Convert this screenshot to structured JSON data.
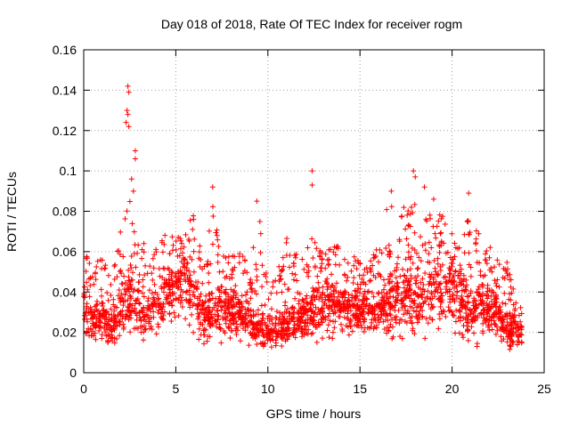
{
  "chart_data": {
    "type": "scatter",
    "title": "Day 018 of 2018, Rate Of TEC Index for receiver rogm",
    "xlabel": "GPS time / hours",
    "ylabel": "ROTI / TECUs",
    "xlim": [
      0,
      25
    ],
    "ylim": [
      0,
      0.16
    ],
    "grid": true,
    "x_ticks": [
      0,
      5,
      10,
      15,
      20,
      25
    ],
    "x_tick_labels": [
      "0",
      "5",
      "10",
      "15",
      "20",
      "25"
    ],
    "y_ticks": [
      0,
      0.02,
      0.04,
      0.06,
      0.08,
      0.1,
      0.12,
      0.14,
      0.16
    ],
    "y_tick_labels": [
      "0",
      "0.02",
      "0.04",
      "0.06",
      "0.08",
      "0.1",
      "0.12",
      "0.14",
      "0.16"
    ],
    "marker": "+",
    "marker_color": "#ff0000",
    "series": [
      {
        "name": "ROTI",
        "description": "Dense cloud of ROTI samples approximated by a time-binned profile (x in hours; low/median/high in TECU/min)",
        "profile": [
          {
            "x": 0.0,
            "low": 0.015,
            "mid": 0.03,
            "high": 0.065
          },
          {
            "x": 0.5,
            "low": 0.012,
            "mid": 0.025,
            "high": 0.048
          },
          {
            "x": 1.0,
            "low": 0.012,
            "mid": 0.028,
            "high": 0.066
          },
          {
            "x": 1.5,
            "low": 0.01,
            "mid": 0.022,
            "high": 0.045
          },
          {
            "x": 2.0,
            "low": 0.012,
            "mid": 0.03,
            "high": 0.07
          },
          {
            "x": 2.5,
            "low": 0.012,
            "mid": 0.035,
            "high": 0.09
          },
          {
            "x": 3.0,
            "low": 0.01,
            "mid": 0.03,
            "high": 0.075
          },
          {
            "x": 3.5,
            "low": 0.012,
            "mid": 0.03,
            "high": 0.06
          },
          {
            "x": 4.0,
            "low": 0.015,
            "mid": 0.035,
            "high": 0.062
          },
          {
            "x": 4.5,
            "low": 0.018,
            "mid": 0.04,
            "high": 0.07
          },
          {
            "x": 5.0,
            "low": 0.02,
            "mid": 0.042,
            "high": 0.068
          },
          {
            "x": 5.5,
            "low": 0.02,
            "mid": 0.045,
            "high": 0.07
          },
          {
            "x": 6.0,
            "low": 0.018,
            "mid": 0.038,
            "high": 0.08
          },
          {
            "x": 6.5,
            "low": 0.008,
            "mid": 0.025,
            "high": 0.055
          },
          {
            "x": 7.0,
            "low": 0.012,
            "mid": 0.032,
            "high": 0.085
          },
          {
            "x": 7.5,
            "low": 0.012,
            "mid": 0.03,
            "high": 0.06
          },
          {
            "x": 8.0,
            "low": 0.014,
            "mid": 0.03,
            "high": 0.058
          },
          {
            "x": 8.5,
            "low": 0.012,
            "mid": 0.028,
            "high": 0.062
          },
          {
            "x": 9.0,
            "low": 0.012,
            "mid": 0.025,
            "high": 0.05
          },
          {
            "x": 9.5,
            "low": 0.01,
            "mid": 0.022,
            "high": 0.08
          },
          {
            "x": 10.0,
            "low": 0.008,
            "mid": 0.02,
            "high": 0.045
          },
          {
            "x": 10.5,
            "low": 0.008,
            "mid": 0.02,
            "high": 0.05
          },
          {
            "x": 11.0,
            "low": 0.01,
            "mid": 0.022,
            "high": 0.07
          },
          {
            "x": 11.5,
            "low": 0.012,
            "mid": 0.025,
            "high": 0.06
          },
          {
            "x": 12.0,
            "low": 0.012,
            "mid": 0.028,
            "high": 0.06
          },
          {
            "x": 12.5,
            "low": 0.012,
            "mid": 0.03,
            "high": 0.07
          },
          {
            "x": 13.0,
            "low": 0.015,
            "mid": 0.032,
            "high": 0.06
          },
          {
            "x": 13.5,
            "low": 0.015,
            "mid": 0.035,
            "high": 0.062
          },
          {
            "x": 14.0,
            "low": 0.015,
            "mid": 0.032,
            "high": 0.065
          },
          {
            "x": 14.5,
            "low": 0.015,
            "mid": 0.03,
            "high": 0.06
          },
          {
            "x": 15.0,
            "low": 0.015,
            "mid": 0.03,
            "high": 0.055
          },
          {
            "x": 15.5,
            "low": 0.015,
            "mid": 0.03,
            "high": 0.058
          },
          {
            "x": 16.0,
            "low": 0.015,
            "mid": 0.03,
            "high": 0.065
          },
          {
            "x": 16.5,
            "low": 0.012,
            "mid": 0.032,
            "high": 0.085
          },
          {
            "x": 17.0,
            "low": 0.012,
            "mid": 0.035,
            "high": 0.088
          },
          {
            "x": 17.5,
            "low": 0.012,
            "mid": 0.035,
            "high": 0.08
          },
          {
            "x": 18.0,
            "low": 0.012,
            "mid": 0.035,
            "high": 0.088
          },
          {
            "x": 18.5,
            "low": 0.012,
            "mid": 0.035,
            "high": 0.08
          },
          {
            "x": 19.0,
            "low": 0.015,
            "mid": 0.04,
            "high": 0.082
          },
          {
            "x": 19.5,
            "low": 0.015,
            "mid": 0.04,
            "high": 0.08
          },
          {
            "x": 20.0,
            "low": 0.015,
            "mid": 0.04,
            "high": 0.07
          },
          {
            "x": 20.5,
            "low": 0.015,
            "mid": 0.035,
            "high": 0.075
          },
          {
            "x": 21.0,
            "low": 0.012,
            "mid": 0.03,
            "high": 0.08
          },
          {
            "x": 21.5,
            "low": 0.01,
            "mid": 0.03,
            "high": 0.068
          },
          {
            "x": 22.0,
            "low": 0.012,
            "mid": 0.03,
            "high": 0.068
          },
          {
            "x": 22.5,
            "low": 0.012,
            "mid": 0.028,
            "high": 0.055
          },
          {
            "x": 23.0,
            "low": 0.008,
            "mid": 0.022,
            "high": 0.055
          },
          {
            "x": 23.5,
            "low": 0.008,
            "mid": 0.02,
            "high": 0.035
          },
          {
            "x": 23.8,
            "low": 0.01,
            "mid": 0.02,
            "high": 0.032
          }
        ],
        "peaks": [
          {
            "x": 2.4,
            "y": 0.142
          },
          {
            "x": 2.45,
            "y": 0.139
          },
          {
            "x": 2.35,
            "y": 0.13
          },
          {
            "x": 2.4,
            "y": 0.128
          },
          {
            "x": 2.3,
            "y": 0.124
          },
          {
            "x": 2.45,
            "y": 0.122
          },
          {
            "x": 2.8,
            "y": 0.11
          },
          {
            "x": 2.8,
            "y": 0.106
          },
          {
            "x": 2.6,
            "y": 0.096
          },
          {
            "x": 2.7,
            "y": 0.09
          },
          {
            "x": 7.0,
            "y": 0.092
          },
          {
            "x": 9.4,
            "y": 0.085
          },
          {
            "x": 12.4,
            "y": 0.1
          },
          {
            "x": 12.4,
            "y": 0.093
          },
          {
            "x": 16.7,
            "y": 0.09
          },
          {
            "x": 17.9,
            "y": 0.1
          },
          {
            "x": 18.0,
            "y": 0.097
          },
          {
            "x": 18.5,
            "y": 0.092
          },
          {
            "x": 19.0,
            "y": 0.086
          },
          {
            "x": 20.9,
            "y": 0.089
          }
        ]
      }
    ]
  }
}
